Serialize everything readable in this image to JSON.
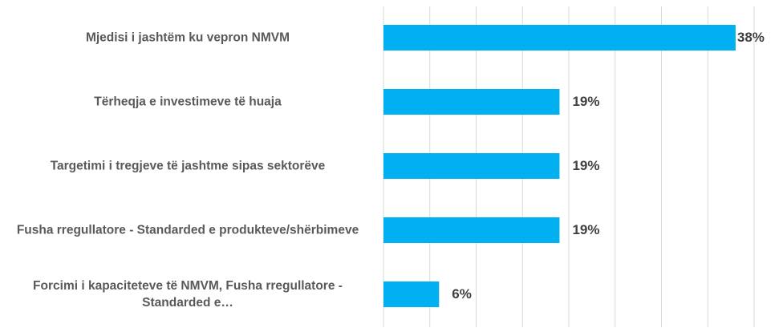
{
  "chart_data": {
    "type": "hbar",
    "categories": [
      "Mjedisi i jashtëm ku vepron NMVM",
      "Tërheqja e investimeve të huaja",
      "Targetimi i tregjeve të jashtme sipas sektorëve",
      "Fusha rregullatore - Standarded e produkteve/shërbimeve",
      "Forcimi i kapaciteteve të NMVM, Fusha rregullatore - Standarded e…"
    ],
    "values": [
      38,
      19,
      19,
      19,
      6
    ],
    "value_labels": [
      "38%",
      "19%",
      "19%",
      "19%",
      "6%"
    ],
    "color": "#00b0f0",
    "xlim": [
      0,
      40
    ],
    "xticks": [
      0,
      5,
      10,
      15,
      20,
      25,
      30,
      35,
      40
    ],
    "grid": true
  }
}
